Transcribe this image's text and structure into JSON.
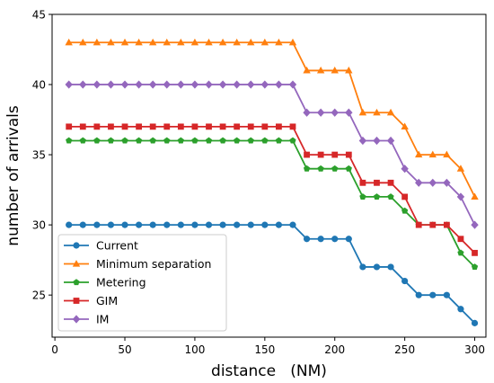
{
  "chart_data": {
    "type": "line",
    "xlabel": "distance   (NM)",
    "ylabel": "number of arrivals",
    "xlim": [
      -2,
      308
    ],
    "ylim": [
      22,
      45
    ],
    "xticks": [
      0,
      50,
      100,
      150,
      200,
      250,
      300
    ],
    "yticks": [
      25,
      30,
      35,
      40,
      45
    ],
    "grid": false,
    "legend_position": "lower-left",
    "x": [
      10,
      20,
      30,
      40,
      50,
      60,
      70,
      80,
      90,
      100,
      110,
      120,
      130,
      140,
      150,
      160,
      170,
      180,
      190,
      200,
      210,
      220,
      230,
      240,
      250,
      260,
      270,
      280,
      290,
      300
    ],
    "series": [
      {
        "name": "Current",
        "color": "#1f77b4",
        "marker": "circle",
        "values": [
          30,
          30,
          30,
          30,
          30,
          30,
          30,
          30,
          30,
          30,
          30,
          30,
          30,
          30,
          30,
          30,
          30,
          29,
          29,
          29,
          29,
          27,
          27,
          27,
          26,
          25,
          25,
          25,
          24,
          23
        ]
      },
      {
        "name": "Minimum separation",
        "color": "#ff7f0e",
        "marker": "triangle",
        "values": [
          43,
          43,
          43,
          43,
          43,
          43,
          43,
          43,
          43,
          43,
          43,
          43,
          43,
          43,
          43,
          43,
          43,
          41,
          41,
          41,
          41,
          38,
          38,
          38,
          37,
          35,
          35,
          35,
          34,
          32
        ]
      },
      {
        "name": "Metering",
        "color": "#2ca02c",
        "marker": "pentagon",
        "values": [
          36,
          36,
          36,
          36,
          36,
          36,
          36,
          36,
          36,
          36,
          36,
          36,
          36,
          36,
          36,
          36,
          36,
          34,
          34,
          34,
          34,
          32,
          32,
          32,
          31,
          30,
          30,
          30,
          28,
          27
        ]
      },
      {
        "name": "GIM",
        "color": "#d62728",
        "marker": "square",
        "values": [
          37,
          37,
          37,
          37,
          37,
          37,
          37,
          37,
          37,
          37,
          37,
          37,
          37,
          37,
          37,
          37,
          37,
          35,
          35,
          35,
          35,
          33,
          33,
          33,
          32,
          30,
          30,
          30,
          29,
          28
        ]
      },
      {
        "name": "IM",
        "color": "#9467bd",
        "marker": "diamond",
        "values": [
          40,
          40,
          40,
          40,
          40,
          40,
          40,
          40,
          40,
          40,
          40,
          40,
          40,
          40,
          40,
          40,
          40,
          38,
          38,
          38,
          38,
          36,
          36,
          36,
          34,
          33,
          33,
          33,
          32,
          30
        ]
      }
    ]
  }
}
